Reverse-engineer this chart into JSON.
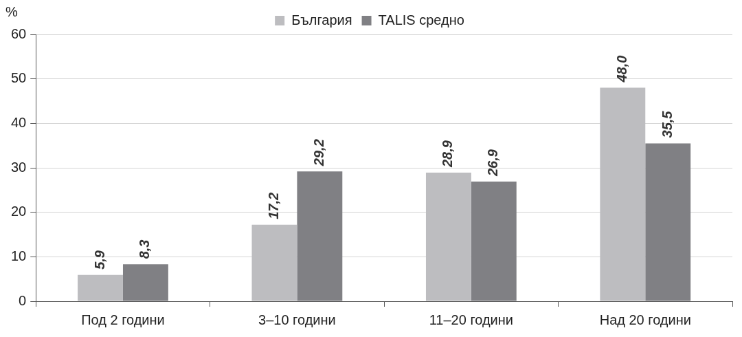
{
  "chart_data": {
    "type": "bar",
    "ylabel": "%",
    "categories": [
      "Под 2 години",
      "3–10 години",
      "11–20 години",
      "Над 20 години"
    ],
    "series": [
      {
        "name": "България",
        "color": "#bdbdc0",
        "values": [
          5.9,
          17.2,
          28.9,
          48.0
        ],
        "value_labels": [
          "5,9",
          "17,2",
          "28,9",
          "48,0"
        ]
      },
      {
        "name": "TALIS средно",
        "color": "#808084",
        "values": [
          8.3,
          29.2,
          26.9,
          35.5
        ],
        "value_labels": [
          "8,3",
          "29,2",
          "26,9",
          "35,5"
        ]
      }
    ],
    "ylim": [
      0,
      60
    ],
    "yticks": [
      0,
      10,
      20,
      30,
      40,
      50,
      60
    ],
    "grid": "y",
    "legend": "top"
  }
}
